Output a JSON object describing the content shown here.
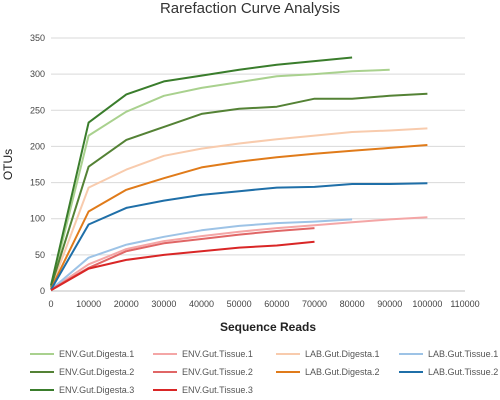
{
  "chart_data": {
    "type": "line",
    "title": "Rarefaction Curve Analysis",
    "xlabel": "Sequence Reads",
    "ylabel": "OTUs",
    "xlim": [
      0,
      110000
    ],
    "ylim": [
      0,
      350
    ],
    "x_ticks": [
      0,
      10000,
      20000,
      30000,
      40000,
      50000,
      60000,
      70000,
      80000,
      90000,
      100000,
      110000
    ],
    "y_ticks": [
      0,
      50,
      100,
      150,
      200,
      250,
      300,
      350
    ],
    "grid": "horizontal",
    "legend_position": "bottom",
    "series": [
      {
        "name": "ENV.Gut.Digesta.1",
        "color": "#a9d18e",
        "points": [
          [
            0,
            5
          ],
          [
            10000,
            215
          ],
          [
            20000,
            248
          ],
          [
            30000,
            270
          ],
          [
            40000,
            281
          ],
          [
            50000,
            289
          ],
          [
            60000,
            297
          ],
          [
            70000,
            300
          ],
          [
            80000,
            304
          ],
          [
            90000,
            306
          ]
        ]
      },
      {
        "name": "ENV.Gut.Tissue.1",
        "color": "#f4a6a6",
        "points": [
          [
            0,
            2
          ],
          [
            10000,
            37
          ],
          [
            20000,
            58
          ],
          [
            30000,
            69
          ],
          [
            40000,
            76
          ],
          [
            50000,
            82
          ],
          [
            60000,
            87
          ],
          [
            70000,
            91
          ],
          [
            80000,
            95
          ],
          [
            90000,
            99
          ],
          [
            100000,
            102
          ]
        ]
      },
      {
        "name": "LAB.Gut.Digesta.1",
        "color": "#f8cbad",
        "points": [
          [
            0,
            4
          ],
          [
            10000,
            143
          ],
          [
            20000,
            168
          ],
          [
            30000,
            187
          ],
          [
            40000,
            197
          ],
          [
            50000,
            204
          ],
          [
            60000,
            210
          ],
          [
            70000,
            215
          ],
          [
            80000,
            220
          ],
          [
            90000,
            222
          ],
          [
            100000,
            225
          ]
        ]
      },
      {
        "name": "LAB.Gut.Tissue.1",
        "color": "#9dc3e6",
        "points": [
          [
            0,
            2
          ],
          [
            10000,
            46
          ],
          [
            20000,
            64
          ],
          [
            30000,
            75
          ],
          [
            40000,
            84
          ],
          [
            50000,
            90
          ],
          [
            60000,
            94
          ],
          [
            70000,
            96
          ],
          [
            80000,
            99
          ]
        ]
      },
      {
        "name": "ENV.Gut.Digesta.2",
        "color": "#548235",
        "points": [
          [
            0,
            6
          ],
          [
            10000,
            172
          ],
          [
            20000,
            209
          ],
          [
            30000,
            227
          ],
          [
            40000,
            245
          ],
          [
            50000,
            252
          ],
          [
            60000,
            255
          ],
          [
            70000,
            266
          ],
          [
            80000,
            266
          ],
          [
            90000,
            270
          ],
          [
            100000,
            273
          ]
        ]
      },
      {
        "name": "ENV.Gut.Tissue.2",
        "color": "#e06666",
        "points": [
          [
            0,
            2
          ],
          [
            10000,
            32
          ],
          [
            20000,
            55
          ],
          [
            30000,
            66
          ],
          [
            40000,
            72
          ],
          [
            50000,
            78
          ],
          [
            60000,
            83
          ],
          [
            70000,
            87
          ]
        ]
      },
      {
        "name": "LAB.Gut.Digesta.2",
        "color": "#e07b1a",
        "points": [
          [
            0,
            3
          ],
          [
            10000,
            110
          ],
          [
            20000,
            140
          ],
          [
            30000,
            156
          ],
          [
            40000,
            171
          ],
          [
            50000,
            179
          ],
          [
            60000,
            185
          ],
          [
            70000,
            190
          ],
          [
            80000,
            194
          ],
          [
            90000,
            198
          ],
          [
            100000,
            202
          ]
        ]
      },
      {
        "name": "LAB.Gut.Tissue.2",
        "color": "#1f6fa8",
        "points": [
          [
            0,
            2
          ],
          [
            10000,
            92
          ],
          [
            20000,
            115
          ],
          [
            30000,
            125
          ],
          [
            40000,
            133
          ],
          [
            50000,
            138
          ],
          [
            60000,
            143
          ],
          [
            70000,
            144
          ],
          [
            80000,
            148
          ],
          [
            90000,
            148
          ],
          [
            100000,
            149
          ]
        ]
      },
      {
        "name": "ENV.Gut.Digesta.3",
        "color": "#3a7d2c",
        "points": [
          [
            0,
            8
          ],
          [
            10000,
            233
          ],
          [
            20000,
            272
          ],
          [
            30000,
            290
          ],
          [
            40000,
            298
          ],
          [
            50000,
            306
          ],
          [
            60000,
            313
          ],
          [
            70000,
            318
          ],
          [
            80000,
            323
          ]
        ]
      },
      {
        "name": "ENV.Gut.Tissue.3",
        "color": "#d92626",
        "points": [
          [
            0,
            1
          ],
          [
            10000,
            31
          ],
          [
            20000,
            43
          ],
          [
            30000,
            50
          ],
          [
            40000,
            55
          ],
          [
            50000,
            60
          ],
          [
            60000,
            63
          ],
          [
            70000,
            68
          ]
        ]
      }
    ]
  }
}
